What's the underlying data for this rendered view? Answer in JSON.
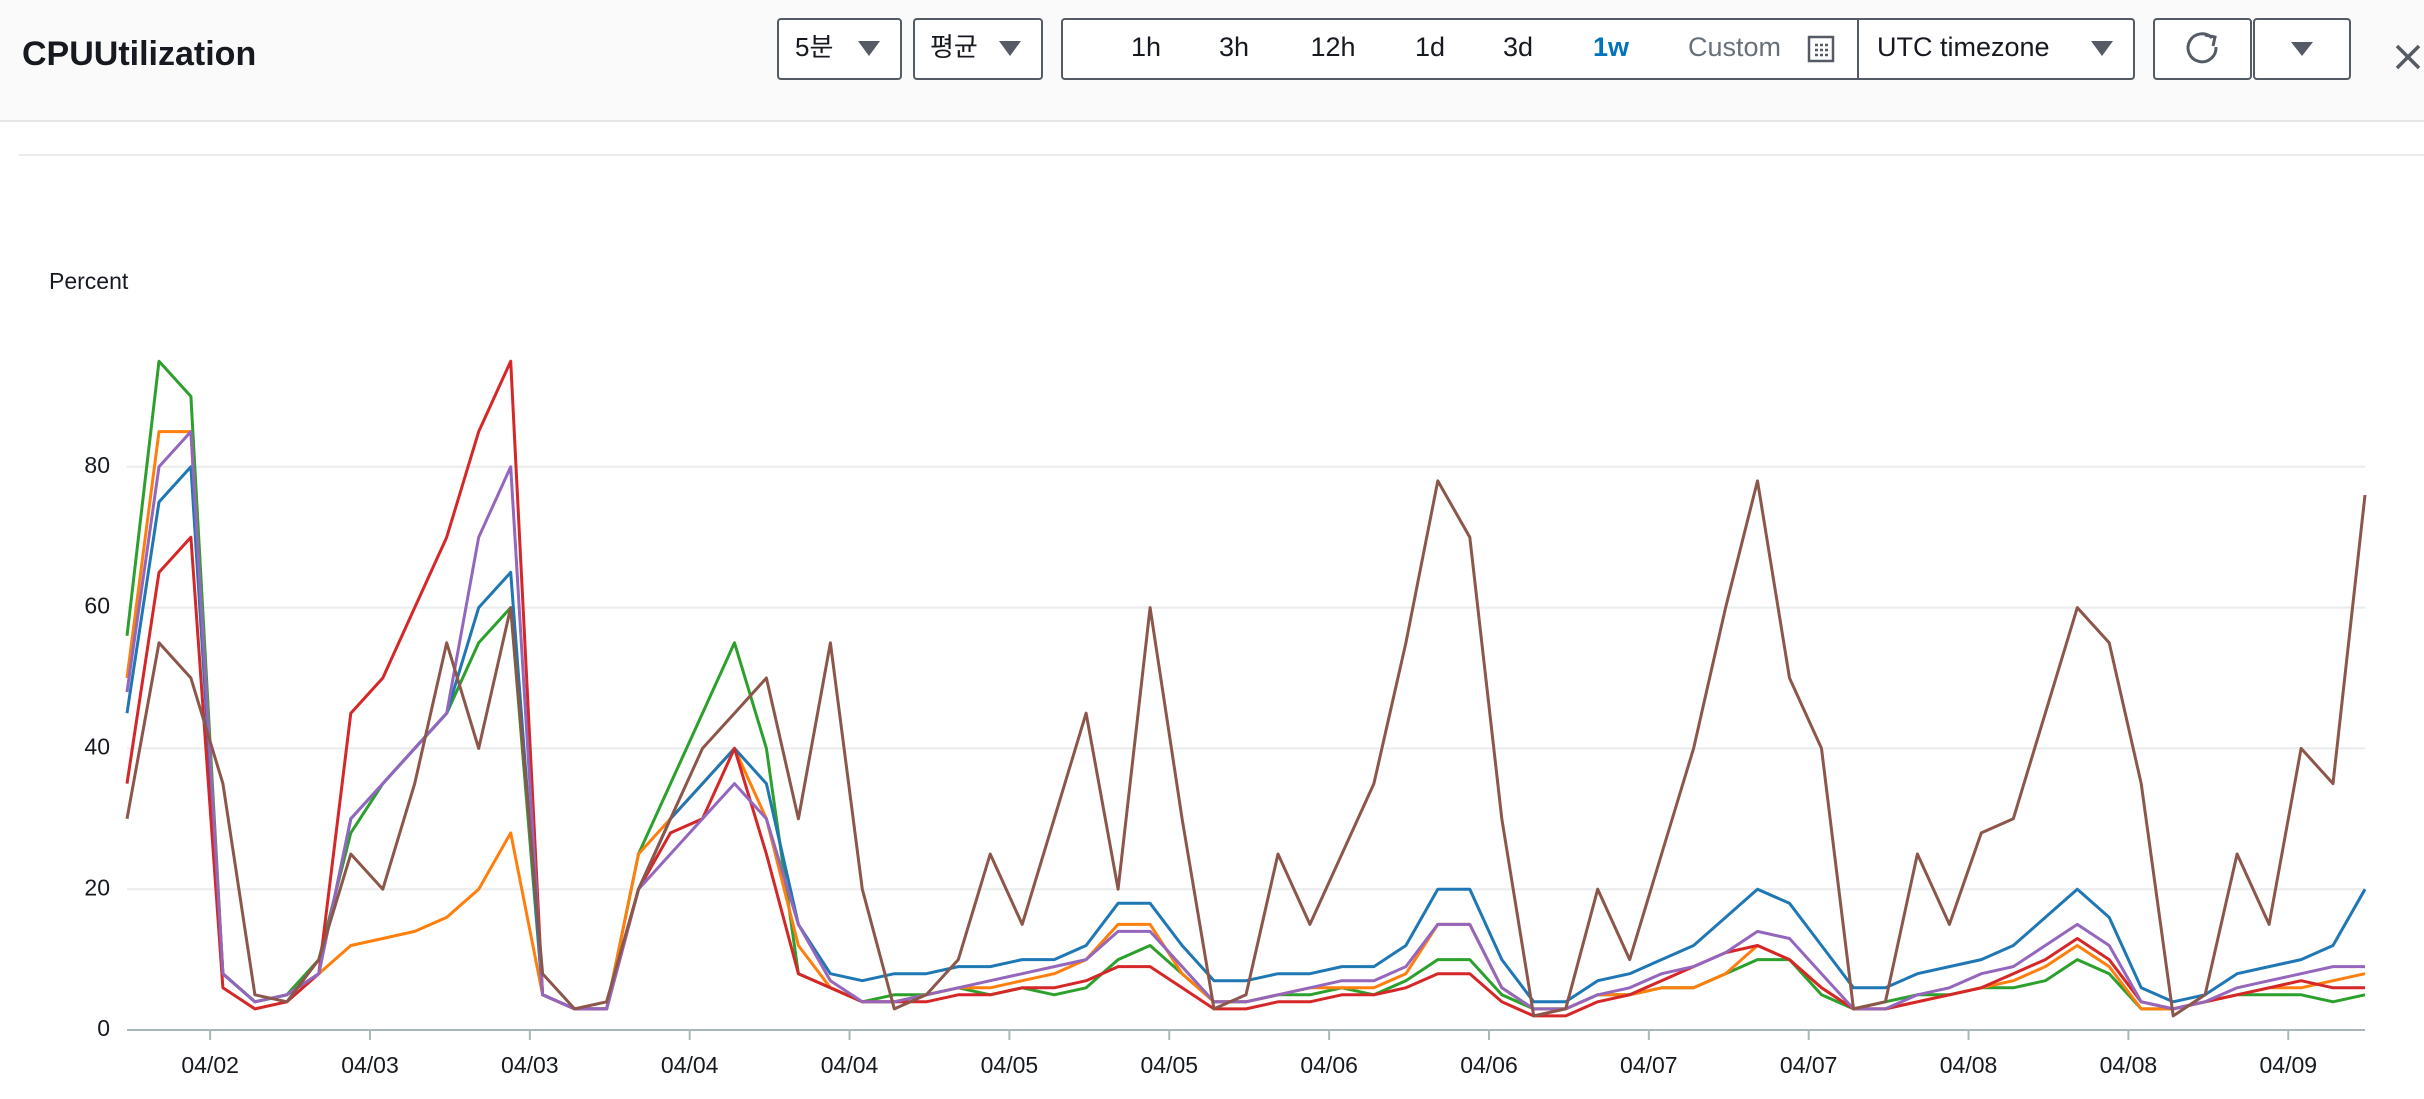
{
  "header": {
    "title": "CPUUtilization"
  },
  "toolbar": {
    "period": "5분",
    "statistic": "평균",
    "ranges": [
      "1h",
      "3h",
      "12h",
      "1d",
      "3d",
      "1w"
    ],
    "active_range": 5,
    "custom": "Custom",
    "timezone": "UTC timezone"
  },
  "chart_data": {
    "type": "line",
    "y_label": "Percent",
    "x": [
      0,
      0.1,
      0.2,
      0.3,
      0.4,
      0.5,
      0.6,
      0.7,
      0.8,
      0.9,
      1,
      1.1,
      1.2,
      1.3,
      1.4,
      1.5,
      1.6,
      1.7,
      1.8,
      1.9,
      2,
      2.1,
      2.2,
      2.3,
      2.4,
      2.5,
      2.6,
      2.7,
      2.8,
      2.9,
      3,
      3.1,
      3.2,
      3.3,
      3.4,
      3.5,
      3.6,
      3.7,
      3.8,
      3.9,
      4,
      4.1,
      4.2,
      4.3,
      4.4,
      4.5,
      4.6,
      4.7,
      4.8,
      4.9,
      5,
      5.1,
      5.2,
      5.3,
      5.4,
      5.5,
      5.6,
      5.7,
      5.8,
      5.9,
      6,
      6.1,
      6.2,
      6.3,
      6.4,
      6.5,
      6.6,
      6.7,
      6.8,
      6.9,
      7
    ],
    "series": [
      {
        "color": "#2ca02c",
        "values": [
          56,
          95,
          90,
          8,
          4,
          5,
          10,
          28,
          35,
          40,
          45,
          55,
          60,
          5,
          3,
          3,
          25,
          35,
          45,
          55,
          40,
          8,
          6,
          4,
          5,
          5,
          6,
          5,
          6,
          5,
          6,
          10,
          12,
          8,
          4,
          4,
          5,
          5,
          6,
          5,
          7,
          10,
          10,
          5,
          3,
          3,
          5,
          5,
          6,
          6,
          8,
          10,
          10,
          5,
          3,
          4,
          5,
          5,
          6,
          6,
          7,
          10,
          8,
          3,
          3,
          4,
          5,
          5,
          5,
          4,
          5
        ]
      },
      {
        "color": "#ff7f0e",
        "values": [
          50,
          85,
          85,
          8,
          4,
          5,
          8,
          12,
          13,
          14,
          16,
          20,
          28,
          5,
          3,
          3,
          25,
          30,
          35,
          40,
          30,
          12,
          6,
          4,
          4,
          5,
          6,
          6,
          7,
          8,
          10,
          15,
          15,
          8,
          4,
          4,
          5,
          6,
          6,
          6,
          8,
          15,
          15,
          6,
          3,
          3,
          5,
          5,
          6,
          6,
          8,
          12,
          10,
          6,
          3,
          3,
          4,
          5,
          6,
          7,
          9,
          12,
          9,
          3,
          3,
          4,
          5,
          6,
          6,
          7,
          8
        ]
      },
      {
        "color": "#1f77b4",
        "values": [
          45,
          75,
          80,
          8,
          4,
          5,
          8,
          30,
          35,
          40,
          45,
          60,
          65,
          5,
          3,
          3,
          20,
          30,
          35,
          40,
          35,
          15,
          8,
          7,
          8,
          8,
          9,
          9,
          10,
          10,
          12,
          18,
          18,
          12,
          7,
          7,
          8,
          8,
          9,
          9,
          12,
          20,
          20,
          10,
          4,
          4,
          7,
          8,
          10,
          12,
          16,
          20,
          18,
          12,
          6,
          6,
          8,
          9,
          10,
          12,
          16,
          20,
          16,
          6,
          4,
          5,
          8,
          9,
          10,
          12,
          20
        ]
      },
      {
        "color": "#d62728",
        "values": [
          35,
          65,
          70,
          6,
          3,
          4,
          8,
          45,
          50,
          60,
          70,
          85,
          95,
          5,
          3,
          3,
          20,
          28,
          30,
          40,
          25,
          8,
          6,
          4,
          4,
          4,
          5,
          5,
          6,
          6,
          7,
          9,
          9,
          6,
          3,
          3,
          4,
          4,
          5,
          5,
          6,
          8,
          8,
          4,
          2,
          2,
          4,
          5,
          7,
          9,
          11,
          12,
          10,
          6,
          3,
          3,
          4,
          5,
          6,
          8,
          10,
          13,
          10,
          4,
          3,
          4,
          5,
          6,
          7,
          6,
          6
        ]
      },
      {
        "color": "#9467bd",
        "values": [
          48,
          80,
          85,
          8,
          4,
          5,
          8,
          30,
          35,
          40,
          45,
          70,
          80,
          5,
          3,
          3,
          20,
          25,
          30,
          35,
          30,
          15,
          7,
          4,
          4,
          5,
          6,
          7,
          8,
          9,
          10,
          14,
          14,
          9,
          4,
          4,
          5,
          6,
          7,
          7,
          9,
          15,
          15,
          6,
          3,
          3,
          5,
          6,
          8,
          9,
          11,
          14,
          13,
          8,
          3,
          3,
          5,
          6,
          8,
          9,
          12,
          15,
          12,
          4,
          3,
          4,
          6,
          7,
          8,
          9,
          9
        ]
      },
      {
        "color": "#8c564b",
        "values": [
          30,
          55,
          50,
          35,
          5,
          4,
          10,
          25,
          20,
          35,
          55,
          40,
          60,
          8,
          3,
          4,
          20,
          30,
          40,
          45,
          50,
          30,
          55,
          20,
          3,
          5,
          10,
          25,
          15,
          30,
          45,
          20,
          60,
          30,
          3,
          5,
          25,
          15,
          25,
          35,
          55,
          78,
          70,
          30,
          2,
          3,
          20,
          10,
          25,
          40,
          60,
          78,
          50,
          40,
          3,
          4,
          25,
          15,
          28,
          30,
          45,
          60,
          55,
          35,
          2,
          5,
          25,
          15,
          40,
          35,
          76
        ]
      }
    ],
    "xlim": [
      0,
      7
    ],
    "xticks": [
      {
        "value": 0.26,
        "label": "04/02"
      },
      {
        "value": 0.76,
        "label": "04/03"
      },
      {
        "value": 1.26,
        "label": "04/03"
      },
      {
        "value": 1.76,
        "label": "04/04"
      },
      {
        "value": 2.26,
        "label": "04/04"
      },
      {
        "value": 2.76,
        "label": "04/05"
      },
      {
        "value": 3.26,
        "label": "04/05"
      },
      {
        "value": 3.76,
        "label": "04/06"
      },
      {
        "value": 4.26,
        "label": "04/06"
      },
      {
        "value": 4.76,
        "label": "04/07"
      },
      {
        "value": 5.26,
        "label": "04/07"
      },
      {
        "value": 5.76,
        "label": "04/08"
      },
      {
        "value": 6.26,
        "label": "04/08"
      },
      {
        "value": 6.76,
        "label": "04/09"
      }
    ],
    "ylim": [
      0,
      100
    ],
    "yticks": [
      0,
      20,
      40,
      60,
      80
    ],
    "grid": true
  }
}
